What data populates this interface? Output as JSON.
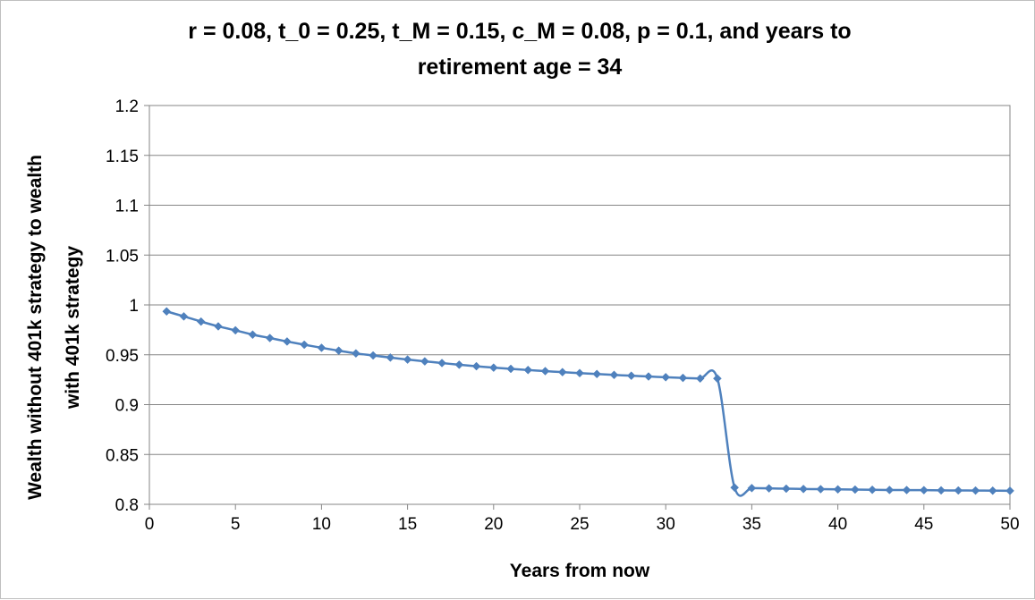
{
  "chart_data": {
    "type": "line",
    "title": "r = 0.08, t_0 = 0.25, t_M = 0.15, c_M = 0.08, p = 0.1, and years to retirement age = 34",
    "title_lines": [
      "r = 0.08, t_0 = 0.25, t_M = 0.15, c_M = 0.08, p = 0.1, and years to",
      "retirement age = 34"
    ],
    "xlabel": "Years from now",
    "ylabel": "Wealth without 401k strategy to wealth with 401k strategy",
    "ylabel_lines": [
      "Wealth without 401k strategy to wealth",
      "with 401k strategy"
    ],
    "xlim": [
      0,
      50
    ],
    "ylim": [
      0.8,
      1.2
    ],
    "x_ticks": [
      "0",
      "5",
      "10",
      "15",
      "20",
      "25",
      "30",
      "35",
      "40",
      "45",
      "50"
    ],
    "y_ticks": [
      "0.8",
      "0.85",
      "0.9",
      "0.95",
      "1",
      "1.05",
      "1.1",
      "1.15",
      "1.2"
    ],
    "grid": "horizontal",
    "legend": "none",
    "series_color": "#4f81bd",
    "series": [
      {
        "x": [
          1,
          2,
          3,
          4,
          5,
          6,
          7,
          8,
          9,
          10,
          11,
          12,
          13,
          14,
          15,
          16,
          17,
          18,
          19,
          20,
          21,
          22,
          23,
          24,
          25,
          26,
          27,
          28,
          29,
          30,
          31,
          32,
          33,
          34,
          35,
          36,
          37,
          38,
          39,
          40,
          41,
          42,
          43,
          44,
          45,
          46,
          47,
          48,
          49,
          50
        ],
        "values": [
          0.9935,
          0.9885,
          0.9833,
          0.9785,
          0.9745,
          0.9702,
          0.9668,
          0.9633,
          0.9601,
          0.957,
          0.9541,
          0.9514,
          0.9493,
          0.9472,
          0.9452,
          0.9434,
          0.9417,
          0.94,
          0.9385,
          0.9371,
          0.9359,
          0.9347,
          0.9336,
          0.9326,
          0.9316,
          0.9307,
          0.9298,
          0.929,
          0.9282,
          0.9275,
          0.9268,
          0.9262,
          0.9262,
          0.8168,
          0.8163,
          0.816,
          0.8157,
          0.8154,
          0.8152,
          0.815,
          0.8148,
          0.8146,
          0.8144,
          0.8143,
          0.8142,
          0.814,
          0.8139,
          0.8138,
          0.8137,
          0.8136
        ]
      }
    ]
  }
}
